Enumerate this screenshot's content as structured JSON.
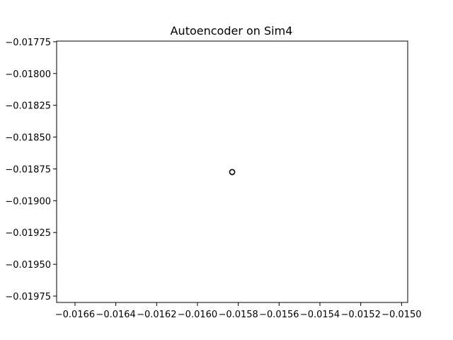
{
  "chart_data": {
    "type": "scatter",
    "title": "Autoencoder on Sim4",
    "xlabel": "",
    "ylabel": "",
    "xlim": [
      -0.01669,
      -0.01497
    ],
    "ylim": [
      -0.0198,
      -0.017745
    ],
    "x_ticks": [
      -0.0166,
      -0.0164,
      -0.0162,
      -0.016,
      -0.0158,
      -0.0156,
      -0.0154,
      -0.0152,
      -0.015
    ],
    "x_tick_labels": [
      "−0.0166",
      "−0.0164",
      "−0.0162",
      "−0.0160",
      "−0.0158",
      "−0.0156",
      "−0.0154",
      "−0.0152",
      "−0.0150"
    ],
    "y_ticks": [
      -0.01775,
      -0.018,
      -0.01825,
      -0.0185,
      -0.01875,
      -0.019,
      -0.01925,
      -0.0195,
      -0.01975
    ],
    "y_tick_labels": [
      "−0.01775",
      "−0.01800",
      "−0.01825",
      "−0.01850",
      "−0.01875",
      "−0.01900",
      "−0.01925",
      "−0.01950",
      "−0.01975"
    ],
    "points": [
      {
        "x": -0.01583,
        "y": -0.018775
      }
    ],
    "marker": "open-circle",
    "marker_color": "#000000",
    "grid": false,
    "legend": false
  }
}
